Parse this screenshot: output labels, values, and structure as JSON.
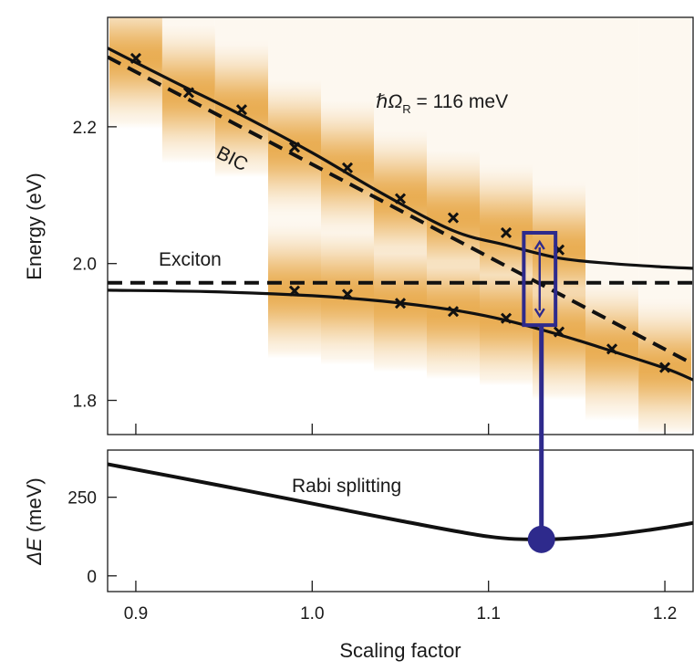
{
  "chart_data": [
    {
      "type": "line",
      "panel": "top",
      "xlabel": "",
      "ylabel": "Energy (eV)",
      "xlim": [
        0.884,
        1.216
      ],
      "ylim": [
        1.75,
        2.36
      ],
      "yticks": [
        1.8,
        2.0,
        2.2
      ],
      "ytick_labels": [
        "1.8",
        "2.0",
        "2.2"
      ],
      "xticks": [
        0.9,
        1.0,
        1.1,
        1.2
      ],
      "grid": false,
      "series": [
        {
          "name": "upper polariton",
          "style": "solid",
          "x": [
            0.884,
            0.92,
            0.96,
            1.0,
            1.04,
            1.08,
            1.11,
            1.14,
            1.17,
            1.2,
            1.216
          ],
          "y": [
            2.315,
            2.268,
            2.217,
            2.162,
            2.102,
            2.048,
            2.027,
            2.008,
            2.0,
            1.995,
            1.993
          ]
        },
        {
          "name": "lower polariton",
          "style": "solid",
          "x": [
            0.884,
            0.94,
            1.0,
            1.04,
            1.08,
            1.11,
            1.14,
            1.17,
            1.2,
            1.216
          ],
          "y": [
            1.961,
            1.959,
            1.953,
            1.945,
            1.932,
            1.917,
            1.896,
            1.872,
            1.847,
            1.83
          ]
        },
        {
          "name": "BIC",
          "style": "dashed",
          "x": [
            0.884,
            1.216
          ],
          "y": [
            2.302,
            1.853
          ]
        },
        {
          "name": "Exciton",
          "style": "dashed",
          "x": [
            0.884,
            1.216
          ],
          "y": [
            1.972,
            1.972
          ]
        },
        {
          "name": "measured peaks",
          "style": "markers-x",
          "x": [
            0.9,
            0.93,
            0.96,
            0.99,
            1.02,
            1.05,
            1.08,
            1.11,
            1.14,
            0.99,
            1.02,
            1.05,
            1.08,
            1.11,
            1.14,
            1.17,
            1.2
          ],
          "y": [
            2.3,
            2.25,
            2.225,
            2.17,
            2.14,
            2.095,
            2.067,
            2.045,
            2.02,
            1.96,
            1.955,
            1.942,
            1.93,
            1.92,
            1.9,
            1.875,
            1.848
          ]
        }
      ],
      "heatmap_columns": [
        {
          "x": 0.9,
          "bright_energies": [
            2.3
          ]
        },
        {
          "x": 0.93,
          "bright_energies": [
            2.25
          ]
        },
        {
          "x": 0.96,
          "bright_energies": [
            2.225
          ]
        },
        {
          "x": 0.99,
          "bright_energies": [
            2.17,
            1.96
          ]
        },
        {
          "x": 1.02,
          "bright_energies": [
            2.14,
            1.955
          ]
        },
        {
          "x": 1.05,
          "bright_energies": [
            2.095,
            1.942
          ]
        },
        {
          "x": 1.08,
          "bright_energies": [
            2.067,
            1.93
          ]
        },
        {
          "x": 1.11,
          "bright_energies": [
            2.045,
            1.92
          ]
        },
        {
          "x": 1.14,
          "bright_energies": [
            2.02,
            1.9
          ]
        },
        {
          "x": 1.17,
          "bright_energies": [
            1.875
          ]
        },
        {
          "x": 1.2,
          "bright_energies": [
            1.848
          ]
        }
      ],
      "highlight_box": {
        "x_range": [
          1.12,
          1.138
        ],
        "y_range": [
          1.91,
          2.045
        ],
        "color": "#2e2a8c"
      },
      "annotations": [
        {
          "id": "rabi_value",
          "prefix": "ℏΩ",
          "subscript": "R",
          "suffix": " = 116 meV",
          "x": 1.035,
          "y": 2.23
        },
        {
          "id": "bic",
          "text": "BIC",
          "x": 0.96,
          "y": 2.16
        },
        {
          "id": "exciton",
          "text": "Exciton",
          "x": 0.94,
          "y": 2.003
        }
      ]
    },
    {
      "type": "line",
      "panel": "bottom",
      "xlabel": "Scaling factor",
      "ylabel": "ΔE (meV)",
      "ylabel_symbol": "ΔE",
      "ylabel_unit": " (meV)",
      "xlim": [
        0.884,
        1.216
      ],
      "ylim": [
        -50,
        400
      ],
      "yticks": [
        0,
        250
      ],
      "ytick_labels": [
        "0",
        "250"
      ],
      "xticks": [
        0.9,
        1.0,
        1.1,
        1.2
      ],
      "xtick_labels": [
        "0.9",
        "1.0",
        "1.1",
        "1.2"
      ],
      "grid": false,
      "series": [
        {
          "name": "Rabi splitting",
          "style": "solid",
          "x": [
            0.884,
            0.95,
            1.0,
            1.05,
            1.1,
            1.13,
            1.16,
            1.19,
            1.216
          ],
          "y": [
            355,
            285,
            230,
            175,
            125,
            116,
            125,
            145,
            168
          ]
        }
      ],
      "marker": {
        "x": 1.13,
        "y": 116,
        "color": "#2e2a8c"
      },
      "annotations": [
        {
          "id": "rabi_label",
          "text": "Rabi splitting",
          "x": 1.04,
          "y": 295
        }
      ]
    }
  ]
}
